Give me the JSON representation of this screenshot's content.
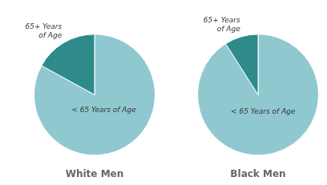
{
  "chart_data": [
    {
      "type": "pie",
      "title": "White Men",
      "categories": [
        "< 65 Years of Age",
        "65+ Years\nof Age"
      ],
      "values": [
        83,
        17
      ],
      "colors": [
        "#90C8D0",
        "#2E8B8A"
      ]
    },
    {
      "type": "pie",
      "title": "Black Men",
      "categories": [
        "< 65 Years of Age",
        "65+ Years\nof Age"
      ],
      "values": [
        91,
        9
      ],
      "colors": [
        "#90C8D0",
        "#2E8B8A"
      ]
    }
  ]
}
